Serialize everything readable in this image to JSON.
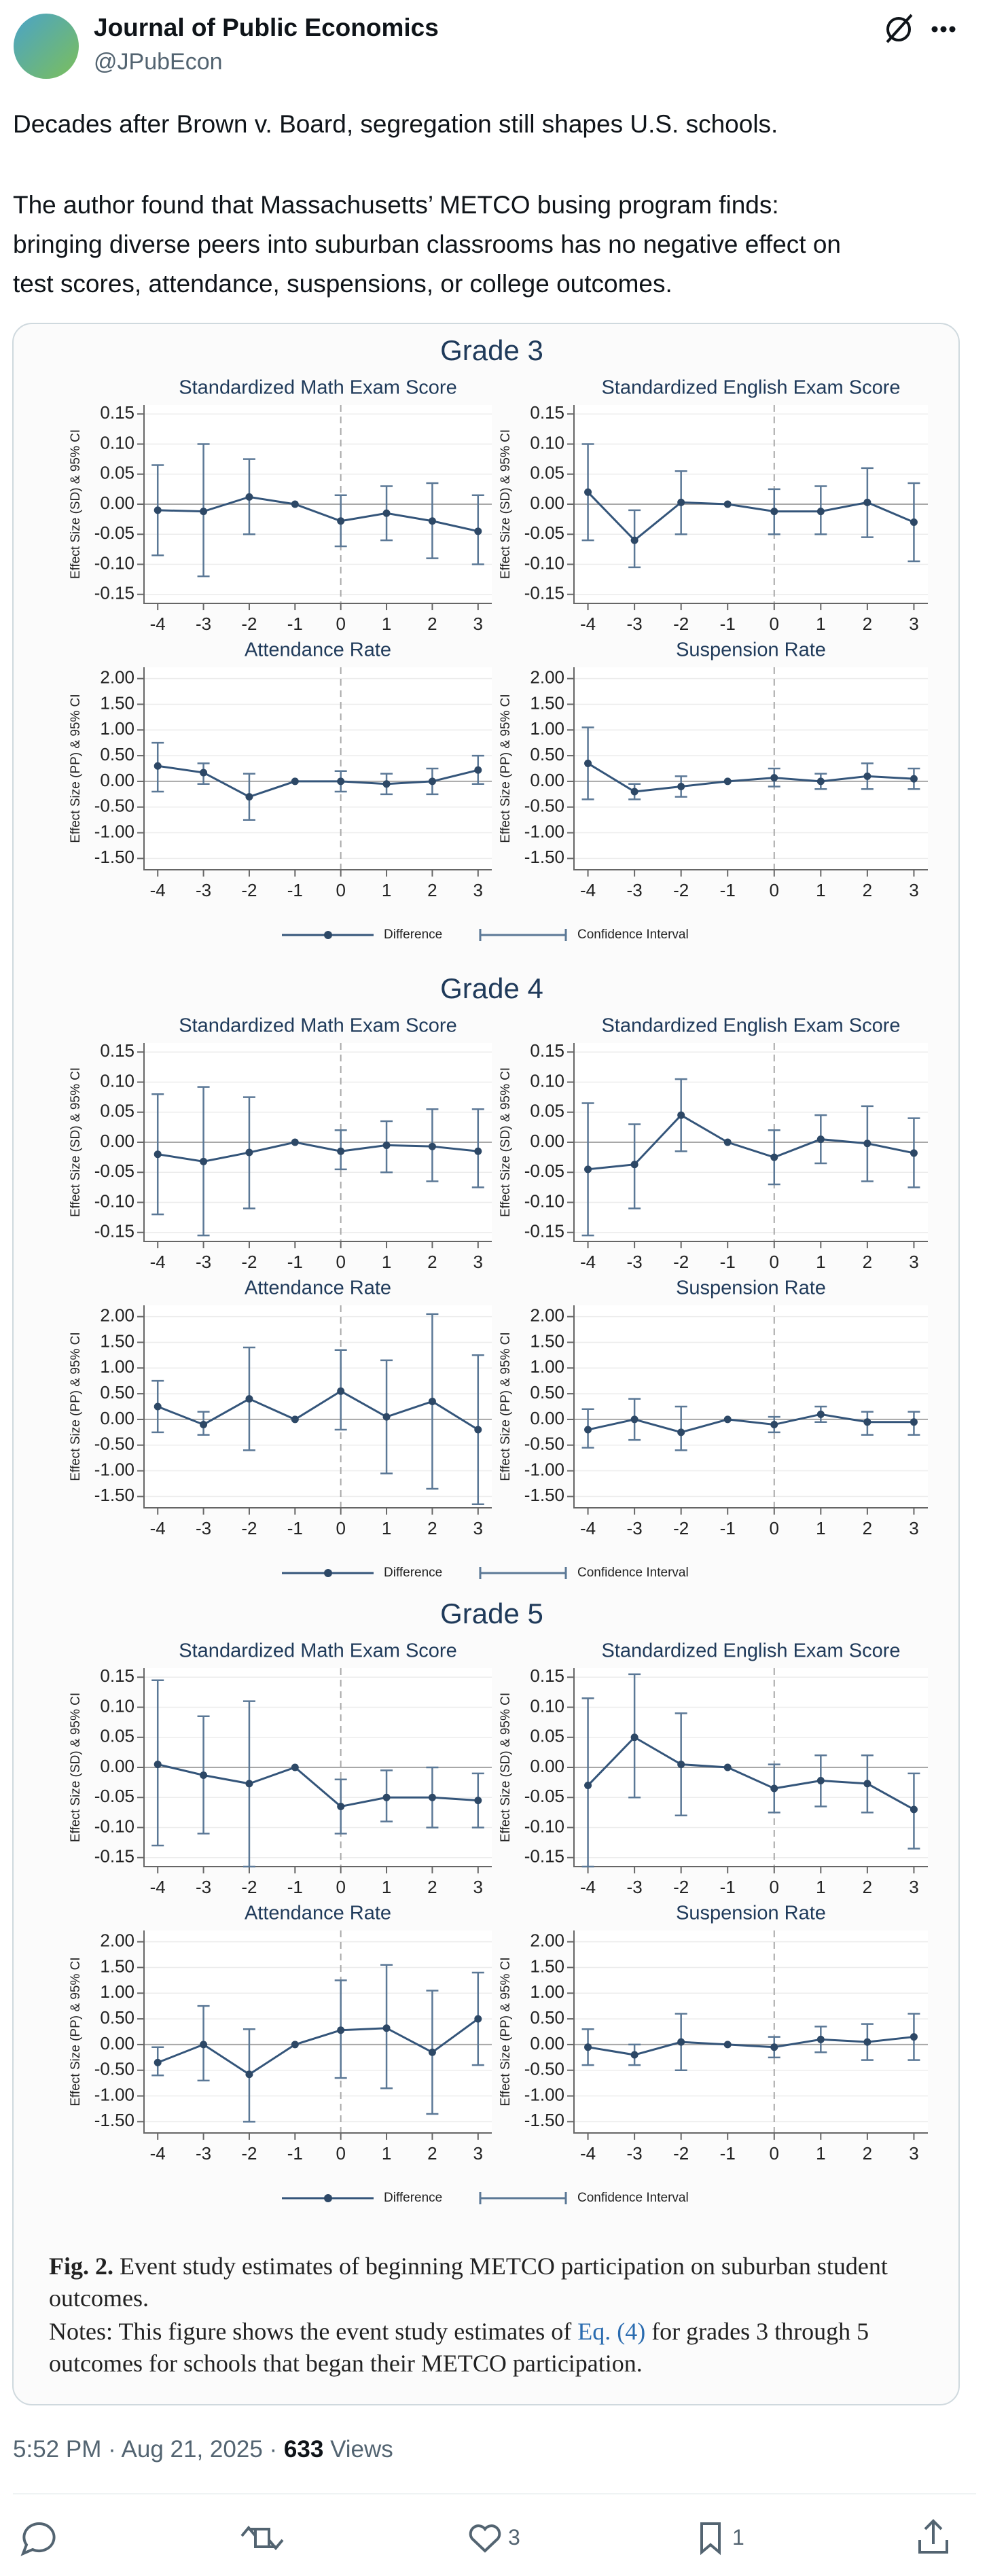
{
  "tweet": {
    "author": {
      "name": "Journal of Public Economics",
      "handle": "@JPubEcon"
    },
    "text": [
      "Decades after Brown v. Board, segregation still shapes U.S. schools.",
      "The author found that Massachusetts’ METCO busing program finds:",
      "bringing diverse peers into suburban classrooms has no negative effect on",
      "test scores, attendance, suspensions, or college outcomes."
    ],
    "time": "5:52 PM",
    "separator": "·",
    "date": "Aug 21, 2025",
    "views_count": "633",
    "views_label": "Views",
    "likes": 3,
    "bookmarks": 1
  },
  "figure": {
    "grades": [
      {
        "title": "Grade 3"
      },
      {
        "title": "Grade 4"
      },
      {
        "title": "Grade 5"
      }
    ],
    "legend": [
      "Difference",
      "Confidence Interval"
    ],
    "caption": {
      "label": "Fig. 2.",
      "title": "Event study estimates of beginning METCO participation on suburban student outcomes.",
      "notes_start": "Notes: This figure shows the event study estimates of",
      "notes_link": "Eq. (4)",
      "notes_end": "for grades 3 through 5 outcomes for schools that began their METCO participation."
    }
  },
  "chart_data": [
    {
      "type": "errorbar",
      "title": "Standardized Math Exam Score",
      "ylabel": "Effect Size (SD) & 95% CI",
      "x": [
        -4,
        -3,
        -2,
        -1,
        0,
        1,
        2,
        3
      ],
      "values": [
        -0.01,
        -0.012,
        0.012,
        0,
        -0.028,
        -0.015,
        -0.028,
        -0.045
      ],
      "lower": [
        -0.085,
        -0.12,
        -0.05,
        null,
        -0.07,
        -0.06,
        -0.09,
        -0.1
      ],
      "upper": [
        0.065,
        0.1,
        0.075,
        null,
        0.015,
        0.03,
        0.035,
        0.015
      ],
      "xlim": [
        -4.3,
        3.3
      ],
      "xticks": [
        -4,
        -3,
        -2,
        -1,
        0,
        1,
        2,
        3
      ],
      "ylim": [
        -0.165,
        0.165
      ],
      "yticks": [
        {
          "value": 0.15,
          "label": "0.15"
        },
        {
          "value": 0.1,
          "label": "0.10"
        },
        {
          "value": 0.05,
          "label": "0.05"
        },
        {
          "value": 0,
          "label": "0.00"
        },
        {
          "value": -0.05,
          "label": "-0.05"
        },
        {
          "value": -0.1,
          "label": "-0.10"
        },
        {
          "value": -0.15,
          "label": "-0.15"
        }
      ],
      "color": "#34557a",
      "grid": true
    },
    {
      "type": "errorbar",
      "title": "Standardized English Exam Score",
      "ylabel": "Effect Size (SD) & 95% CI",
      "x": [
        -4,
        -3,
        -2,
        -1,
        0,
        1,
        2,
        3
      ],
      "values": [
        0.02,
        -0.06,
        0.003,
        0,
        -0.012,
        -0.012,
        0.003,
        -0.03
      ],
      "lower": [
        -0.06,
        -0.105,
        -0.05,
        null,
        -0.05,
        -0.05,
        -0.055,
        -0.095
      ],
      "upper": [
        0.1,
        -0.01,
        0.055,
        null,
        0.025,
        0.03,
        0.06,
        0.035
      ],
      "xlim": [
        -4.3,
        3.3
      ],
      "xticks": [
        -4,
        -3,
        -2,
        -1,
        0,
        1,
        2,
        3
      ],
      "ylim": [
        -0.165,
        0.165
      ],
      "yticks": [
        {
          "value": 0.15,
          "label": "0.15"
        },
        {
          "value": 0.1,
          "label": "0.10"
        },
        {
          "value": 0.05,
          "label": "0.05"
        },
        {
          "value": 0,
          "label": "0.00"
        },
        {
          "value": -0.05,
          "label": "-0.05"
        },
        {
          "value": -0.1,
          "label": "-0.10"
        },
        {
          "value": -0.15,
          "label": "-0.15"
        }
      ],
      "color": "#34557a",
      "grid": true
    },
    {
      "type": "errorbar",
      "title": "Attendance Rate",
      "ylabel": "Effect Size (PP) & 95% CI",
      "x": [
        -4,
        -3,
        -2,
        -1,
        0,
        1,
        2,
        3
      ],
      "values": [
        0.3,
        0.17,
        -0.3,
        0,
        0,
        -0.05,
        0,
        0.22
      ],
      "lower": [
        -0.2,
        -0.05,
        -0.75,
        null,
        -0.2,
        -0.25,
        -0.25,
        -0.05
      ],
      "upper": [
        0.75,
        0.35,
        0.15,
        null,
        0.2,
        0.15,
        0.25,
        0.5
      ],
      "xlim": [
        -4.3,
        3.3
      ],
      "xticks": [
        -4,
        -3,
        -2,
        -1,
        0,
        1,
        2,
        3
      ],
      "ylim": [
        -1.72,
        2.22
      ],
      "yticks": [
        {
          "value": 2,
          "label": "2.00"
        },
        {
          "value": 1.5,
          "label": "1.50"
        },
        {
          "value": 1,
          "label": "1.00"
        },
        {
          "value": 0.5,
          "label": "0.50"
        },
        {
          "value": 0,
          "label": "0.00"
        },
        {
          "value": -0.5,
          "label": "-0.50"
        },
        {
          "value": -1,
          "label": "-1.00"
        },
        {
          "value": -1.5,
          "label": "-1.50"
        }
      ],
      "color": "#34557a",
      "grid": true
    },
    {
      "type": "errorbar",
      "title": "Suspension Rate",
      "ylabel": "Effect Size (PP) & 95% CI",
      "x": [
        -4,
        -3,
        -2,
        -1,
        0,
        1,
        2,
        3
      ],
      "values": [
        0.35,
        -0.2,
        -0.1,
        0,
        0.07,
        0,
        0.1,
        0.05
      ],
      "lower": [
        -0.35,
        -0.35,
        -0.3,
        null,
        -0.1,
        -0.15,
        -0.15,
        -0.15
      ],
      "upper": [
        1.05,
        -0.05,
        0.1,
        null,
        0.25,
        0.15,
        0.35,
        0.25
      ],
      "xlim": [
        -4.3,
        3.3
      ],
      "xticks": [
        -4,
        -3,
        -2,
        -1,
        0,
        1,
        2,
        3
      ],
      "ylim": [
        -1.72,
        2.22
      ],
      "yticks": [
        {
          "value": 2,
          "label": "2.00"
        },
        {
          "value": 1.5,
          "label": "1.50"
        },
        {
          "value": 1,
          "label": "1.00"
        },
        {
          "value": 0.5,
          "label": "0.50"
        },
        {
          "value": 0,
          "label": "0.00"
        },
        {
          "value": -0.5,
          "label": "-0.50"
        },
        {
          "value": -1,
          "label": "-1.00"
        },
        {
          "value": -1.5,
          "label": "-1.50"
        }
      ],
      "color": "#34557a",
      "grid": true
    },
    {
      "type": "errorbar",
      "title": "Standardized Math Exam Score",
      "ylabel": "Effect Size (SD) & 95% CI",
      "x": [
        -4,
        -3,
        -2,
        -1,
        0,
        1,
        2,
        3
      ],
      "values": [
        -0.02,
        -0.032,
        -0.017,
        0,
        -0.015,
        -0.005,
        -0.007,
        -0.015
      ],
      "lower": [
        -0.12,
        -0.155,
        -0.11,
        null,
        -0.045,
        -0.05,
        -0.065,
        -0.075
      ],
      "upper": [
        0.08,
        0.092,
        0.075,
        null,
        0.02,
        0.035,
        0.055,
        0.055
      ],
      "xlim": [
        -4.3,
        3.3
      ],
      "xticks": [
        -4,
        -3,
        -2,
        -1,
        0,
        1,
        2,
        3
      ],
      "ylim": [
        -0.165,
        0.165
      ],
      "yticks": [
        {
          "value": 0.15,
          "label": "0.15"
        },
        {
          "value": 0.1,
          "label": "0.10"
        },
        {
          "value": 0.05,
          "label": "0.05"
        },
        {
          "value": 0,
          "label": "0.00"
        },
        {
          "value": -0.05,
          "label": "-0.05"
        },
        {
          "value": -0.1,
          "label": "-0.10"
        },
        {
          "value": -0.15,
          "label": "-0.15"
        }
      ],
      "color": "#34557a",
      "grid": true
    },
    {
      "type": "errorbar",
      "title": "Standardized English Exam Score",
      "ylabel": "Effect Size (SD) & 95% CI",
      "x": [
        -4,
        -3,
        -2,
        -1,
        0,
        1,
        2,
        3
      ],
      "values": [
        -0.045,
        -0.037,
        0.045,
        0,
        -0.025,
        0.005,
        -0.002,
        -0.018
      ],
      "lower": [
        -0.155,
        -0.11,
        -0.015,
        null,
        -0.07,
        -0.035,
        -0.065,
        -0.075
      ],
      "upper": [
        0.065,
        0.03,
        0.105,
        null,
        0.02,
        0.045,
        0.06,
        0.04
      ],
      "xlim": [
        -4.3,
        3.3
      ],
      "xticks": [
        -4,
        -3,
        -2,
        -1,
        0,
        1,
        2,
        3
      ],
      "ylim": [
        -0.165,
        0.165
      ],
      "yticks": [
        {
          "value": 0.15,
          "label": "0.15"
        },
        {
          "value": 0.1,
          "label": "0.10"
        },
        {
          "value": 0.05,
          "label": "0.05"
        },
        {
          "value": 0,
          "label": "0.00"
        },
        {
          "value": -0.05,
          "label": "-0.05"
        },
        {
          "value": -0.1,
          "label": "-0.10"
        },
        {
          "value": -0.15,
          "label": "-0.15"
        }
      ],
      "color": "#34557a",
      "grid": true
    },
    {
      "type": "errorbar",
      "title": "Attendance Rate",
      "ylabel": "Effect Size (PP) & 95% CI",
      "x": [
        -4,
        -3,
        -2,
        -1,
        0,
        1,
        2,
        3
      ],
      "values": [
        0.25,
        -0.1,
        0.4,
        0,
        0.55,
        0.05,
        0.35,
        -0.2
      ],
      "lower": [
        -0.25,
        -0.3,
        -0.6,
        null,
        -0.2,
        -1.05,
        -1.35,
        -1.65
      ],
      "upper": [
        0.75,
        0.15,
        1.4,
        null,
        1.35,
        1.15,
        2.05,
        1.25
      ],
      "xlim": [
        -4.3,
        3.3
      ],
      "xticks": [
        -4,
        -3,
        -2,
        -1,
        0,
        1,
        2,
        3
      ],
      "ylim": [
        -1.72,
        2.22
      ],
      "yticks": [
        {
          "value": 2,
          "label": "2.00"
        },
        {
          "value": 1.5,
          "label": "1.50"
        },
        {
          "value": 1,
          "label": "1.00"
        },
        {
          "value": 0.5,
          "label": "0.50"
        },
        {
          "value": 0,
          "label": "0.00"
        },
        {
          "value": -0.5,
          "label": "-0.50"
        },
        {
          "value": -1,
          "label": "-1.00"
        },
        {
          "value": -1.5,
          "label": "-1.50"
        }
      ],
      "color": "#34557a",
      "grid": true
    },
    {
      "type": "errorbar",
      "title": "Suspension Rate",
      "ylabel": "Effect Size (PP) & 95% CI",
      "x": [
        -4,
        -3,
        -2,
        -1,
        0,
        1,
        2,
        3
      ],
      "values": [
        -0.2,
        0,
        -0.25,
        0,
        -0.1,
        0.1,
        -0.05,
        -0.05
      ],
      "lower": [
        -0.55,
        -0.4,
        -0.6,
        null,
        -0.25,
        -0.05,
        -0.3,
        -0.3
      ],
      "upper": [
        0.2,
        0.4,
        0.25,
        null,
        0.05,
        0.25,
        0.15,
        0.15
      ],
      "xlim": [
        -4.3,
        3.3
      ],
      "xticks": [
        -4,
        -3,
        -2,
        -1,
        0,
        1,
        2,
        3
      ],
      "ylim": [
        -1.72,
        2.22
      ],
      "yticks": [
        {
          "value": 2,
          "label": "2.00"
        },
        {
          "value": 1.5,
          "label": "1.50"
        },
        {
          "value": 1,
          "label": "1.00"
        },
        {
          "value": 0.5,
          "label": "0.50"
        },
        {
          "value": 0,
          "label": "0.00"
        },
        {
          "value": -0.5,
          "label": "-0.50"
        },
        {
          "value": -1,
          "label": "-1.00"
        },
        {
          "value": -1.5,
          "label": "-1.50"
        }
      ],
      "color": "#34557a",
      "grid": true
    },
    {
      "type": "errorbar",
      "title": "Standardized Math Exam Score",
      "ylabel": "Effect Size (SD) & 95% CI",
      "x": [
        -4,
        -3,
        -2,
        -1,
        0,
        1,
        2,
        3
      ],
      "values": [
        0.005,
        -0.013,
        -0.027,
        0,
        -0.065,
        -0.05,
        -0.05,
        -0.055
      ],
      "lower": [
        -0.13,
        -0.11,
        -0.165,
        null,
        -0.11,
        -0.09,
        -0.1,
        -0.1
      ],
      "upper": [
        0.145,
        0.085,
        0.11,
        null,
        -0.02,
        -0.005,
        0,
        -0.01
      ],
      "xlim": [
        -4.3,
        3.3
      ],
      "xticks": [
        -4,
        -3,
        -2,
        -1,
        0,
        1,
        2,
        3
      ],
      "ylim": [
        -0.165,
        0.165
      ],
      "yticks": [
        {
          "value": 0.15,
          "label": "0.15"
        },
        {
          "value": 0.1,
          "label": "0.10"
        },
        {
          "value": 0.05,
          "label": "0.05"
        },
        {
          "value": 0,
          "label": "0.00"
        },
        {
          "value": -0.05,
          "label": "-0.05"
        },
        {
          "value": -0.1,
          "label": "-0.10"
        },
        {
          "value": -0.15,
          "label": "-0.15"
        }
      ],
      "color": "#34557a",
      "grid": true
    },
    {
      "type": "errorbar",
      "title": "Standardized English Exam Score",
      "ylabel": "Effect Size (SD) & 95% CI",
      "x": [
        -4,
        -3,
        -2,
        -1,
        0,
        1,
        2,
        3
      ],
      "values": [
        -0.03,
        0.05,
        0.005,
        0,
        -0.035,
        -0.022,
        -0.027,
        -0.07
      ],
      "lower": [
        -0.165,
        -0.05,
        -0.08,
        null,
        -0.075,
        -0.065,
        -0.075,
        -0.135
      ],
      "upper": [
        0.115,
        0.155,
        0.09,
        null,
        0.005,
        0.02,
        0.02,
        -0.01
      ],
      "xlim": [
        -4.3,
        3.3
      ],
      "xticks": [
        -4,
        -3,
        -2,
        -1,
        0,
        1,
        2,
        3
      ],
      "ylim": [
        -0.165,
        0.165
      ],
      "yticks": [
        {
          "value": 0.15,
          "label": "0.15"
        },
        {
          "value": 0.1,
          "label": "0.10"
        },
        {
          "value": 0.05,
          "label": "0.05"
        },
        {
          "value": 0,
          "label": "0.00"
        },
        {
          "value": -0.05,
          "label": "-0.05"
        },
        {
          "value": -0.1,
          "label": "-0.10"
        },
        {
          "value": -0.15,
          "label": "-0.15"
        }
      ],
      "color": "#34557a",
      "grid": true
    },
    {
      "type": "errorbar",
      "title": "Attendance Rate",
      "ylabel": "Effect Size (PP) & 95% CI",
      "x": [
        -4,
        -3,
        -2,
        -1,
        0,
        1,
        2,
        3
      ],
      "values": [
        -0.35,
        0,
        -0.58,
        0,
        0.28,
        0.32,
        -0.15,
        0.5
      ],
      "lower": [
        -0.6,
        -0.7,
        -1.5,
        null,
        -0.65,
        -0.85,
        -1.35,
        -0.4
      ],
      "upper": [
        -0.05,
        0.75,
        0.3,
        null,
        1.25,
        1.55,
        1.05,
        1.4
      ],
      "xlim": [
        -4.3,
        3.3
      ],
      "xticks": [
        -4,
        -3,
        -2,
        -1,
        0,
        1,
        2,
        3
      ],
      "ylim": [
        -1.72,
        2.22
      ],
      "yticks": [
        {
          "value": 2,
          "label": "2.00"
        },
        {
          "value": 1.5,
          "label": "1.50"
        },
        {
          "value": 1,
          "label": "1.00"
        },
        {
          "value": 0.5,
          "label": "0.50"
        },
        {
          "value": 0,
          "label": "0.00"
        },
        {
          "value": -0.5,
          "label": "-0.50"
        },
        {
          "value": -1,
          "label": "-1.00"
        },
        {
          "value": -1.5,
          "label": "-1.50"
        }
      ],
      "color": "#34557a",
      "grid": true
    },
    {
      "type": "errorbar",
      "title": "Suspension Rate",
      "ylabel": "Effect Size (PP) & 95% CI",
      "x": [
        -4,
        -3,
        -2,
        -1,
        0,
        1,
        2,
        3
      ],
      "values": [
        -0.05,
        -0.2,
        0.05,
        0,
        -0.05,
        0.1,
        0.05,
        0.15
      ],
      "lower": [
        -0.4,
        -0.4,
        -0.5,
        null,
        -0.25,
        -0.15,
        -0.3,
        -0.3
      ],
      "upper": [
        0.3,
        0,
        0.6,
        null,
        0.15,
        0.35,
        0.4,
        0.6
      ],
      "xlim": [
        -4.3,
        3.3
      ],
      "xticks": [
        -4,
        -3,
        -2,
        -1,
        0,
        1,
        2,
        3
      ],
      "ylim": [
        -1.72,
        2.22
      ],
      "yticks": [
        {
          "value": 2,
          "label": "2.00"
        },
        {
          "value": 1.5,
          "label": "1.50"
        },
        {
          "value": 1,
          "label": "1.00"
        },
        {
          "value": 0.5,
          "label": "0.50"
        },
        {
          "value": 0,
          "label": "0.00"
        },
        {
          "value": -0.5,
          "label": "-0.50"
        },
        {
          "value": -1,
          "label": "-1.00"
        },
        {
          "value": -1.5,
          "label": "-1.50"
        }
      ],
      "color": "#34557a",
      "grid": true
    }
  ]
}
